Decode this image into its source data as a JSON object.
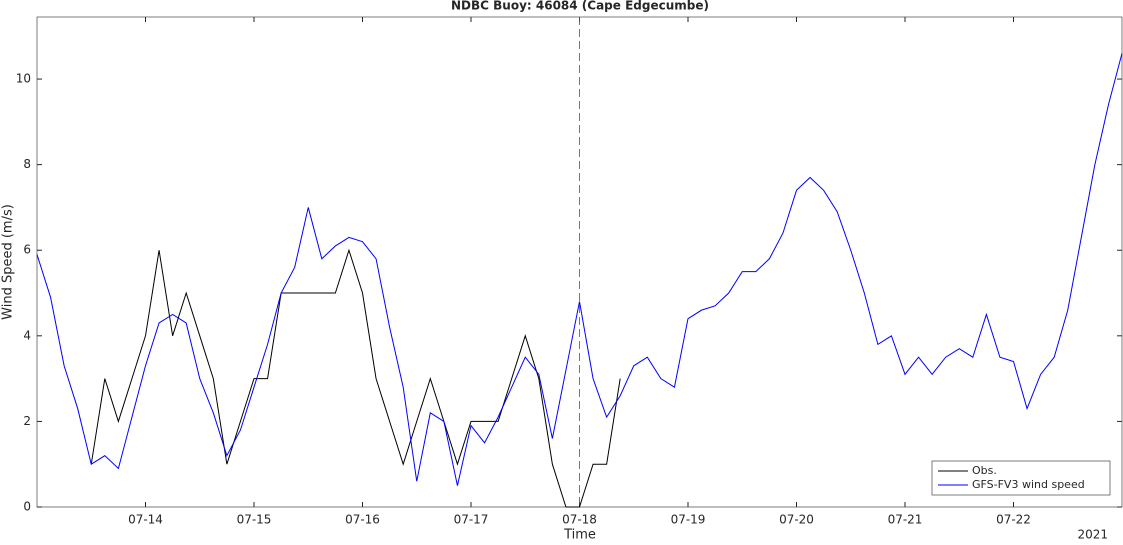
{
  "chart_data": {
    "type": "line",
    "title": "NDBC Buoy: 46084 (Cape Edgecumbe)",
    "x_label": "Time",
    "y_label": "Wind Speed (m/s)",
    "year_label": "2021",
    "x": [
      13.0,
      13.125,
      13.25,
      13.375,
      13.5,
      13.625,
      13.75,
      13.875,
      14.0,
      14.125,
      14.25,
      14.375,
      14.5,
      14.625,
      14.75,
      14.875,
      15.0,
      15.125,
      15.25,
      15.375,
      15.5,
      15.625,
      15.75,
      15.875,
      16.0,
      16.125,
      16.25,
      16.375,
      16.5,
      16.625,
      16.75,
      16.875,
      17.0,
      17.125,
      17.25,
      17.375,
      17.5,
      17.625,
      17.75,
      17.875,
      18.0,
      18.125,
      18.25,
      18.375,
      18.5,
      18.625,
      18.75,
      18.875,
      19.0,
      19.125,
      19.25,
      19.375,
      19.5,
      19.625,
      19.75,
      19.875,
      20.0,
      20.125,
      20.25,
      20.375,
      20.5,
      20.625,
      20.75,
      20.875,
      21.0,
      21.125,
      21.25,
      21.375,
      21.5,
      21.625,
      21.75,
      21.875,
      22.0,
      22.125,
      22.25,
      22.375,
      22.5,
      22.625,
      22.75,
      22.875,
      23.0
    ],
    "series": [
      {
        "name": "Obs.",
        "color": "#000000",
        "values": [
          null,
          null,
          null,
          null,
          1,
          3,
          2,
          3,
          4,
          6,
          4,
          5,
          4,
          3,
          1,
          2,
          3,
          3,
          5,
          5,
          5,
          5,
          5,
          6,
          5,
          3,
          2,
          1,
          2,
          3,
          2,
          1,
          2,
          2,
          2,
          3,
          4,
          3,
          1,
          0,
          0,
          1,
          1,
          3,
          null,
          null,
          null,
          null,
          null,
          null,
          null,
          null,
          null,
          null,
          null,
          null,
          null,
          null,
          null,
          null,
          null,
          null,
          null,
          null,
          null,
          null,
          null,
          null,
          null,
          null,
          null,
          null,
          null,
          null,
          null,
          null,
          null,
          null,
          null,
          null,
          null
        ]
      },
      {
        "name": "GFS-FV3 wind speed",
        "color": "#0000ff",
        "values": [
          5.9,
          4.9,
          3.3,
          2.3,
          1.0,
          1.2,
          0.9,
          2.1,
          3.3,
          4.3,
          4.5,
          4.3,
          3.0,
          2.2,
          1.2,
          1.8,
          2.8,
          3.8,
          5.0,
          5.6,
          7.0,
          5.8,
          6.1,
          6.3,
          6.2,
          5.8,
          4.2,
          2.8,
          0.6,
          2.2,
          2.0,
          0.5,
          1.9,
          1.5,
          2.1,
          2.8,
          3.5,
          3.1,
          1.6,
          3.2,
          4.8,
          3.0,
          2.1,
          2.6,
          3.3,
          3.5,
          3.0,
          2.8,
          4.4,
          4.6,
          4.7,
          5.0,
          5.5,
          5.5,
          5.8,
          6.4,
          7.4,
          7.7,
          7.4,
          6.9,
          6.0,
          5.0,
          3.8,
          4.0,
          3.1,
          3.5,
          3.1,
          3.5,
          3.7,
          3.5,
          4.5,
          3.5,
          3.4,
          2.3,
          3.1,
          3.5,
          4.6,
          6.3,
          8.0,
          9.4,
          10.6
        ]
      }
    ],
    "xlim": [
      13,
      23
    ],
    "ylim": [
      0,
      11.45
    ],
    "xticks": [
      {
        "value": 14,
        "label": "07-14"
      },
      {
        "value": 15,
        "label": "07-15"
      },
      {
        "value": 16,
        "label": "07-16"
      },
      {
        "value": 17,
        "label": "07-17"
      },
      {
        "value": 18,
        "label": "07-18"
      },
      {
        "value": 19,
        "label": "07-19"
      },
      {
        "value": 20,
        "label": "07-20"
      },
      {
        "value": 21,
        "label": "07-21"
      },
      {
        "value": 22,
        "label": "07-22"
      }
    ],
    "yticks": [
      0,
      2,
      4,
      6,
      8,
      10
    ],
    "vline": 18,
    "grid": false,
    "legend": "southeast"
  }
}
